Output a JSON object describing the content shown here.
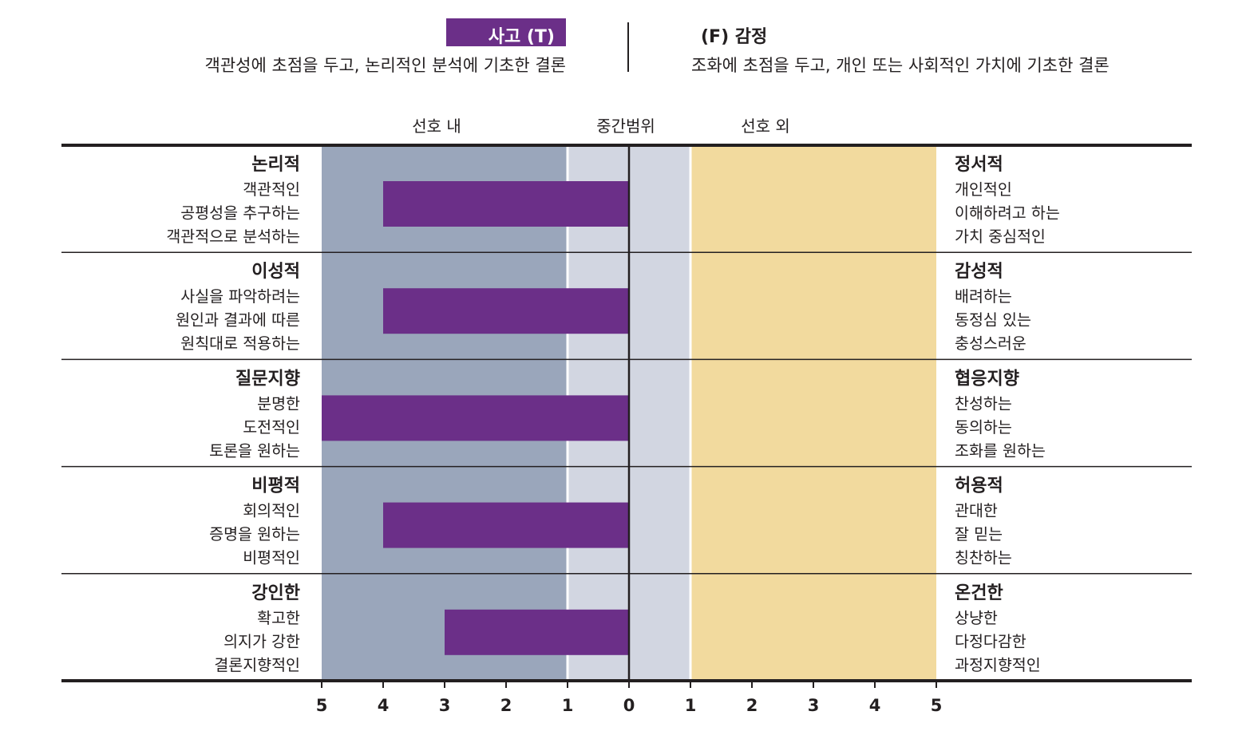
{
  "header": {
    "left_badge": "사고 (T)",
    "left_description": "객관성에 초점을 두고, 논리적인 분석에 기초한 결론",
    "right_title": "(F) 감정",
    "right_description": "조화에 초점을 두고, 개인 또는 사회적인 가치에 기초한 결론"
  },
  "colors": {
    "in_preference": "#9aa6bb",
    "middle": "#d2d6e1",
    "out_preference": "#f2da9e",
    "bar": "#6b2f88",
    "line": "#231f20"
  },
  "chart_data": {
    "type": "bar",
    "orientation": "horizontal",
    "zone_labels": [
      "선호 내",
      "중간범위",
      "선호 외"
    ],
    "x_ticks_left": [
      "5",
      "4",
      "3",
      "2",
      "1"
    ],
    "x_tick_center": "0",
    "x_ticks_right": [
      "1",
      "2",
      "3",
      "4",
      "5"
    ],
    "xlim": [
      -5,
      5
    ],
    "categories": [
      {
        "left_title": "논리적",
        "left_items": [
          "객관적인",
          "공평성을 추구하는",
          "객관적으로 분석하는"
        ],
        "right_title": "정서적",
        "right_items": [
          "개인적인",
          "이해하려고 하는",
          "가치 중심적인"
        ],
        "value": -4
      },
      {
        "left_title": "이성적",
        "left_items": [
          "사실을 파악하려는",
          "원인과 결과에 따른",
          "원칙대로 적용하는"
        ],
        "right_title": "감성적",
        "right_items": [
          "배려하는",
          "동정심 있는",
          "충성스러운"
        ],
        "value": -4
      },
      {
        "left_title": "질문지향",
        "left_items": [
          "분명한",
          "도전적인",
          "토론을 원하는"
        ],
        "right_title": "협응지향",
        "right_items": [
          "찬성하는",
          "동의하는",
          "조화를 원하는"
        ],
        "value": -5
      },
      {
        "left_title": "비평적",
        "left_items": [
          "회의적인",
          "증명을 원하는",
          "비평적인"
        ],
        "right_title": "허용적",
        "right_items": [
          "관대한",
          "잘 믿는",
          "칭찬하는"
        ],
        "value": -4
      },
      {
        "left_title": "강인한",
        "left_items": [
          "확고한",
          "의지가 강한",
          "결론지향적인"
        ],
        "right_title": "온건한",
        "right_items": [
          "상냥한",
          "다정다감한",
          "과정지향적인"
        ],
        "value": -3
      }
    ]
  }
}
